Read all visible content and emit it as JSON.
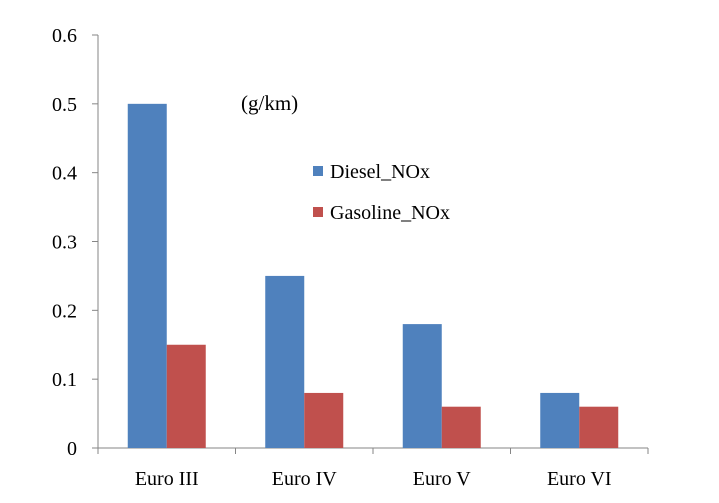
{
  "chart_data": {
    "type": "bar",
    "categories": [
      "Euro III",
      "Euro IV",
      "Euro V",
      "Euro VI"
    ],
    "series": [
      {
        "name": "Diesel_NOx",
        "values": [
          0.5,
          0.25,
          0.18,
          0.08
        ],
        "color": "#4f81bd"
      },
      {
        "name": "Gasoline_NOx",
        "values": [
          0.15,
          0.08,
          0.06,
          0.06
        ],
        "color": "#c0504d"
      }
    ],
    "unit": "(g/km)",
    "ylim": [
      0,
      0.6
    ],
    "yticks": [
      "0",
      "0.1",
      "0.2",
      "0.3",
      "0.4",
      "0.5",
      "0.6"
    ],
    "grid": false,
    "legend_position": "top-center"
  }
}
